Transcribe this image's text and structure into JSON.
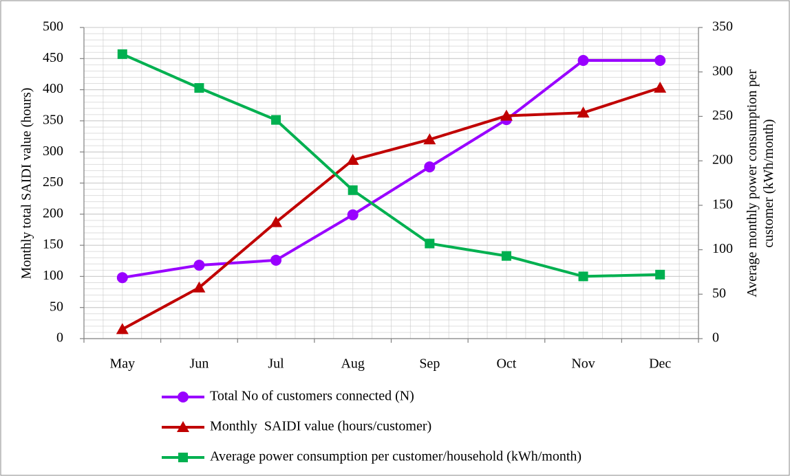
{
  "chart_data": {
    "type": "line",
    "ylabel": "Monthly total SAIDI value (hours)",
    "y2label": "Average monthly power consumption per customer (kWh/month)",
    "categories": [
      "May",
      "Jun",
      "Jul",
      "Aug",
      "Sep",
      "Oct",
      "Nov",
      "Dec"
    ],
    "series": [
      {
        "name": "Total No of customers connected (N)",
        "color": "#9900ff",
        "marker": "circle",
        "values": [
          98,
          118,
          126,
          199,
          276,
          352,
          447,
          447
        ]
      },
      {
        "name": "Monthly  SAIDI value (hours/customer)",
        "color": "#c00000",
        "marker": "triangle",
        "values": [
          15,
          82,
          187,
          287,
          320,
          358,
          363,
          403
        ]
      },
      {
        "name": "Average power consumption per customer/household (kWh/month)",
        "color": "#00b050",
        "marker": "square",
        "axis": "y2",
        "values": [
          320,
          282,
          246,
          167,
          107,
          93,
          70,
          72
        ]
      }
    ],
    "ylim": [
      0,
      500
    ],
    "yticks": [
      0,
      50,
      100,
      150,
      200,
      250,
      300,
      350,
      400,
      450,
      500
    ],
    "y2lim": [
      0,
      350
    ],
    "y2ticks": [
      0,
      50,
      100,
      150,
      200,
      250,
      300,
      350
    ],
    "grid": true,
    "legend": "bottom"
  }
}
